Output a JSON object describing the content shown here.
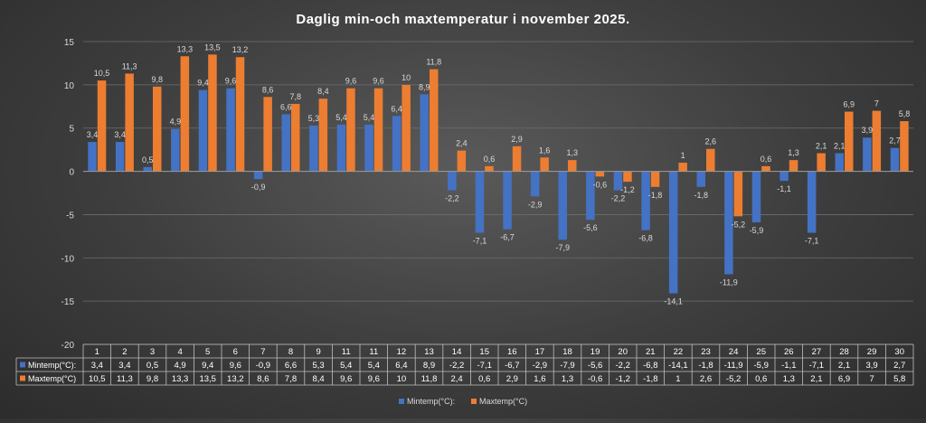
{
  "chart_data": {
    "type": "bar",
    "title": "Daglig min-och maxtemperatur i november 2025.",
    "xlabel": "",
    "ylabel": "",
    "ylim": [
      -20,
      15
    ],
    "yticks": [
      -20,
      -15,
      -10,
      -5,
      0,
      5,
      10,
      15
    ],
    "grid": true,
    "legend_placement": "bottom",
    "data_table": true,
    "categories": [
      "1",
      "2",
      "3",
      "4",
      "5",
      "6",
      "7",
      "8",
      "9",
      "11",
      "11",
      "12",
      "13",
      "14",
      "15",
      "16",
      "17",
      "18",
      "19",
      "20",
      "21",
      "22",
      "23",
      "24",
      "25",
      "26",
      "27",
      "28",
      "29",
      "30"
    ],
    "series": [
      {
        "name": "Mintemp(°C):",
        "color": "#4472c4",
        "values": [
          3.4,
          3.4,
          0.5,
          4.9,
          9.4,
          9.6,
          -0.9,
          6.6,
          5.3,
          5.4,
          5.4,
          6.4,
          8.9,
          -2.2,
          -7.1,
          -6.7,
          -2.9,
          -7.9,
          -5.6,
          -2.2,
          -6.8,
          -14.1,
          -1.8,
          -11.9,
          -5.9,
          -1.1,
          -7.1,
          2.1,
          3.9,
          2.7
        ],
        "labels": [
          "3,4",
          "3,4",
          "0,5",
          "4,9",
          "9,4",
          "9,6",
          "-0,9",
          "6,6",
          "5,3",
          "5,4",
          "5,4",
          "6,4",
          "8,9",
          "-2,2",
          "-7,1",
          "-6,7",
          "-2,9",
          "-7,9",
          "-5,6",
          "-2,2",
          "-6,8",
          "-14,1",
          "-1,8",
          "-11,9",
          "-5,9",
          "-1,1",
          "-7,1",
          "2,1",
          "3,9",
          "2,7"
        ]
      },
      {
        "name": "Maxtemp(°C)",
        "color": "#ed7d31",
        "values": [
          10.5,
          11.3,
          9.8,
          13.3,
          13.5,
          13.2,
          8.6,
          7.8,
          8.4,
          9.6,
          9.6,
          10,
          11.8,
          2.4,
          0.6,
          2.9,
          1.6,
          1.3,
          -0.6,
          -1.2,
          -1.8,
          1,
          2.6,
          -5.2,
          0.6,
          1.3,
          2.1,
          6.9,
          7,
          5.8
        ],
        "labels": [
          "10,5",
          "11,3",
          "9,8",
          "13,3",
          "13,5",
          "13,2",
          "8,6",
          "7,8",
          "8,4",
          "9,6",
          "9,6",
          "10",
          "11,8",
          "2,4",
          "0,6",
          "2,9",
          "1,6",
          "1,3",
          "-0,6",
          "-1,2",
          "-1,8",
          "1",
          "2,6",
          "-5,2",
          "0,6",
          "1,3",
          "2,1",
          "6,9",
          "7",
          "5,8"
        ]
      }
    ],
    "legend": [
      {
        "name": "Mintemp(°C):",
        "color": "#4472c4"
      },
      {
        "name": "Maxtemp(°C)",
        "color": "#ed7d31"
      }
    ]
  }
}
